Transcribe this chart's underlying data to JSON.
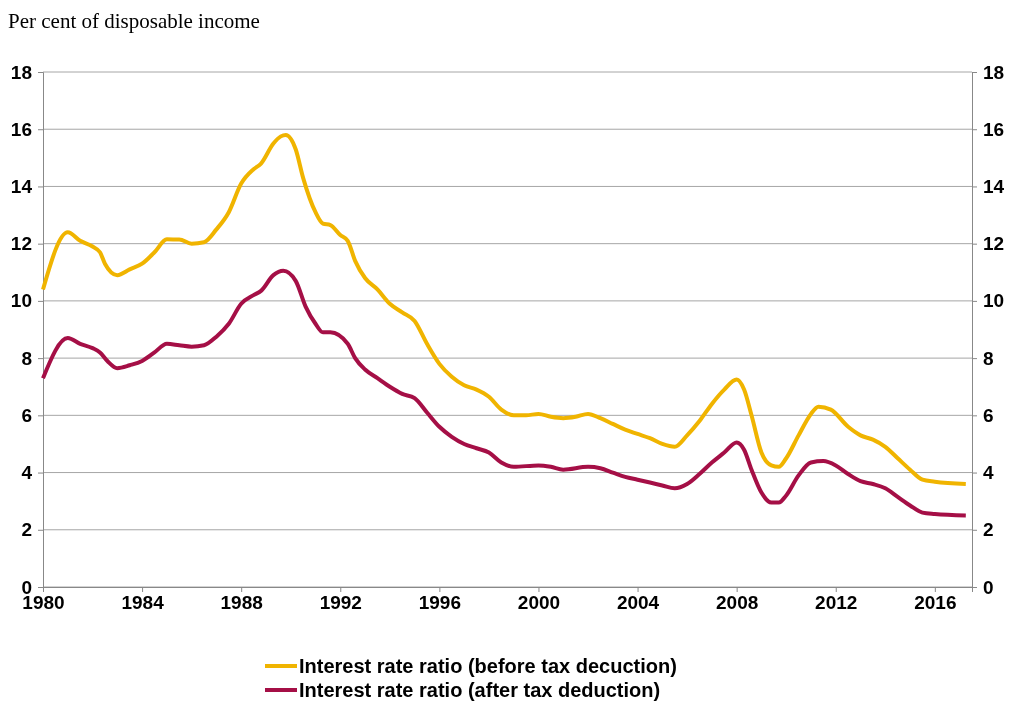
{
  "chart_data": {
    "type": "line",
    "ylabel": "Per cent of disposable income",
    "xlim": [
      1980,
      2017.5
    ],
    "xticks": [
      1980,
      1984,
      1988,
      1992,
      1996,
      2000,
      2004,
      2008,
      2012,
      2016
    ],
    "ylim": [
      0,
      18
    ],
    "yticks": [
      0,
      2,
      4,
      6,
      8,
      10,
      12,
      14,
      16,
      18
    ],
    "y2lim": [
      0,
      18
    ],
    "y2ticks": [
      0,
      2,
      4,
      6,
      8,
      10,
      12,
      14,
      16,
      18
    ],
    "grid": "y",
    "legend": "bottom",
    "marker": "none",
    "line_style": "solid",
    "series": [
      {
        "name": "Interest rate ratio (before tax decuction)",
        "color": "#f0b400",
        "x": [
          1980,
          1981,
          1981.5,
          1982,
          1982.3,
          1982.5,
          1983,
          1983.5,
          1984,
          1984.5,
          1985,
          1985.5,
          1986,
          1986.5,
          1987,
          1987.5,
          1988,
          1988.5,
          1988.8,
          1989.3,
          1989.6,
          1989.8,
          1990.2,
          1990.5,
          1991,
          1991.3,
          1991.6,
          1992,
          1992.3,
          1992.6,
          1993,
          1993.5,
          1994,
          1994.5,
          1995,
          1995.5,
          1996,
          1996.5,
          1997,
          1997.5,
          1998,
          1998.5,
          1999,
          1999.5,
          2000,
          2000.5,
          2001,
          2001.5,
          2002,
          2002.5,
          2003,
          2003.5,
          2004,
          2004.5,
          2005,
          2005.5,
          2006,
          2006.5,
          2007,
          2007.5,
          2008,
          2008.3,
          2008.6,
          2009,
          2009.4,
          2009.7,
          2010,
          2010.5,
          2011,
          2011.3,
          2011.8,
          2012.5,
          2013,
          2013.5,
          2014,
          2014.5,
          2015,
          2015.5,
          2016,
          2017.25
        ],
        "values": [
          10.4,
          12.4,
          12.1,
          11.9,
          11.7,
          11.3,
          10.9,
          11.1,
          11.3,
          11.7,
          12.15,
          12.15,
          12.0,
          12.05,
          12.5,
          13.1,
          14.1,
          14.6,
          14.8,
          15.5,
          15.75,
          15.8,
          15.3,
          14.3,
          13.1,
          12.7,
          12.65,
          12.3,
          12.1,
          11.4,
          10.8,
          10.4,
          9.9,
          9.6,
          9.3,
          8.5,
          7.8,
          7.35,
          7.05,
          6.9,
          6.65,
          6.2,
          6.0,
          6.0,
          6.05,
          5.95,
          5.9,
          5.95,
          6.05,
          5.9,
          5.7,
          5.5,
          5.35,
          5.2,
          5.0,
          4.9,
          5.3,
          5.8,
          6.4,
          6.9,
          7.25,
          6.9,
          6.0,
          4.7,
          4.25,
          4.2,
          4.5,
          5.3,
          6.05,
          6.3,
          6.2,
          5.6,
          5.3,
          5.15,
          4.9,
          4.5,
          4.1,
          3.75,
          3.68,
          3.6
        ]
      },
      {
        "name": "Interest rate ratio (after tax deduction)",
        "color": "#a50f46",
        "x": [
          1980,
          1981,
          1981.5,
          1982,
          1982.3,
          1982.6,
          1983,
          1983.5,
          1984,
          1984.5,
          1985,
          1985.5,
          1986,
          1986.5,
          1987,
          1987.5,
          1988,
          1988.5,
          1988.8,
          1989.3,
          1989.7,
          1990.2,
          1990.6,
          1991,
          1991.3,
          1991.6,
          1992.3,
          1992.6,
          1993,
          1993.5,
          1994,
          1994.5,
          1995,
          1995.5,
          1996,
          1996.5,
          1997,
          1997.5,
          1998,
          1998.5,
          1999,
          2000,
          2000.5,
          2001,
          2002,
          2002.5,
          2003,
          2003.5,
          2004,
          2004.5,
          2005,
          2005.5,
          2006,
          2006.5,
          2007,
          2007.5,
          2008,
          2008.3,
          2008.6,
          2009,
          2009.4,
          2009.7,
          2010,
          2010.5,
          2011,
          2011.5,
          2012,
          2012.5,
          2013,
          2013.5,
          2014,
          2014.5,
          2015,
          2015.5,
          2016,
          2017.25
        ],
        "values": [
          7.3,
          8.7,
          8.5,
          8.35,
          8.2,
          7.9,
          7.65,
          7.75,
          7.9,
          8.2,
          8.5,
          8.45,
          8.4,
          8.45,
          8.75,
          9.2,
          9.9,
          10.2,
          10.35,
          10.9,
          11.05,
          10.7,
          9.8,
          9.2,
          8.9,
          8.9,
          8.5,
          8.0,
          7.6,
          7.3,
          7.0,
          6.75,
          6.6,
          6.1,
          5.6,
          5.25,
          5.0,
          4.85,
          4.7,
          4.35,
          4.2,
          4.25,
          4.2,
          4.1,
          4.2,
          4.15,
          4.0,
          3.85,
          3.75,
          3.65,
          3.55,
          3.45,
          3.6,
          3.95,
          4.35,
          4.7,
          5.05,
          4.8,
          4.1,
          3.3,
          2.95,
          2.95,
          3.2,
          3.9,
          4.35,
          4.4,
          4.25,
          3.95,
          3.7,
          3.6,
          3.45,
          3.15,
          2.85,
          2.6,
          2.55,
          2.5
        ]
      }
    ]
  }
}
